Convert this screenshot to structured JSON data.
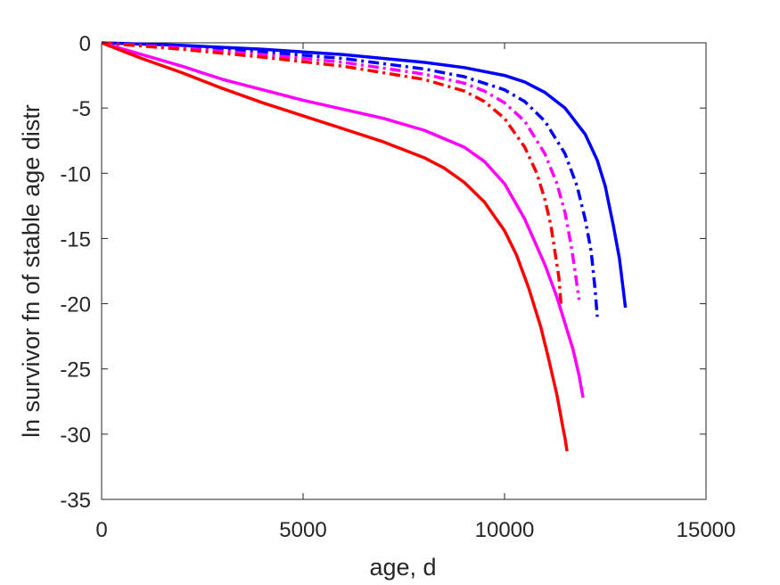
{
  "chart_data": {
    "type": "line",
    "title": "",
    "xlabel": "age, d",
    "ylabel": "ln survivor fn of stable age distr",
    "xlim": [
      0,
      15000
    ],
    "ylim": [
      -35,
      0
    ],
    "xticks": [
      0,
      5000,
      10000,
      15000
    ],
    "yticks": [
      0,
      -5,
      -10,
      -15,
      -20,
      -25,
      -30,
      -35
    ],
    "grid": false,
    "legend": "none",
    "series": [
      {
        "color": "#0000ff",
        "style": "solid",
        "x": [
          0,
          2000,
          4000,
          6000,
          8000,
          9000,
          10000,
          10500,
          11000,
          11500,
          12000,
          12300,
          12500,
          12700,
          12850,
          12950,
          13000
        ],
        "y": [
          0,
          -0.2,
          -0.5,
          -0.9,
          -1.5,
          -1.9,
          -2.5,
          -3.0,
          -3.8,
          -5.0,
          -7.0,
          -9.0,
          -11.0,
          -14.0,
          -16.5,
          -19.0,
          -20.3
        ]
      },
      {
        "color": "#0000ff",
        "style": "dashdot",
        "x": [
          0,
          2000,
          4000,
          6000,
          8000,
          9000,
          10000,
          10500,
          11000,
          11500,
          11800,
          12000,
          12150,
          12250,
          12300
        ],
        "y": [
          0,
          -0.3,
          -0.7,
          -1.2,
          -2.0,
          -2.6,
          -3.6,
          -4.5,
          -6.0,
          -8.5,
          -11.0,
          -13.5,
          -16.0,
          -19.0,
          -21.0
        ]
      },
      {
        "color": "#ff00ff",
        "style": "dashdot",
        "x": [
          0,
          2000,
          4000,
          6000,
          8000,
          9000,
          9500,
          10000,
          10500,
          11000,
          11300,
          11500,
          11650,
          11750,
          11850
        ],
        "y": [
          0,
          -0.4,
          -0.9,
          -1.5,
          -2.4,
          -3.1,
          -3.7,
          -4.6,
          -6.0,
          -8.5,
          -10.8,
          -13.0,
          -15.5,
          -17.5,
          -19.7
        ]
      },
      {
        "color": "#ff0000",
        "style": "dashdot",
        "x": [
          0,
          2000,
          4000,
          6000,
          8000,
          9000,
          9500,
          10000,
          10500,
          10800,
          11000,
          11150,
          11250,
          11350,
          11400
        ],
        "y": [
          0,
          -0.5,
          -1.1,
          -1.8,
          -2.8,
          -3.7,
          -4.5,
          -5.8,
          -8.0,
          -10.0,
          -12.0,
          -14.0,
          -16.0,
          -18.0,
          -20.0
        ]
      },
      {
        "color": "#ff00ff",
        "style": "solid",
        "x": [
          0,
          1000,
          2000,
          3000,
          4000,
          5000,
          6000,
          7000,
          8000,
          9000,
          9500,
          10000,
          10500,
          11000,
          11300,
          11500,
          11700,
          11850,
          11950
        ],
        "y": [
          0,
          -0.9,
          -1.8,
          -2.8,
          -3.6,
          -4.4,
          -5.1,
          -5.8,
          -6.7,
          -8.0,
          -9.1,
          -10.8,
          -13.5,
          -17.0,
          -19.5,
          -21.5,
          -23.5,
          -25.5,
          -27.2
        ]
      },
      {
        "color": "#ff0000",
        "style": "solid",
        "x": [
          0,
          1000,
          2000,
          3000,
          4000,
          5000,
          6000,
          7000,
          8000,
          8500,
          9000,
          9500,
          10000,
          10300,
          10600,
          10900,
          11100,
          11300,
          11450,
          11500,
          11550
        ],
        "y": [
          0,
          -1.2,
          -2.3,
          -3.5,
          -4.6,
          -5.6,
          -6.6,
          -7.6,
          -8.8,
          -9.6,
          -10.7,
          -12.2,
          -14.4,
          -16.3,
          -18.8,
          -21.8,
          -24.3,
          -27.0,
          -29.5,
          -30.3,
          -31.3
        ]
      }
    ]
  }
}
